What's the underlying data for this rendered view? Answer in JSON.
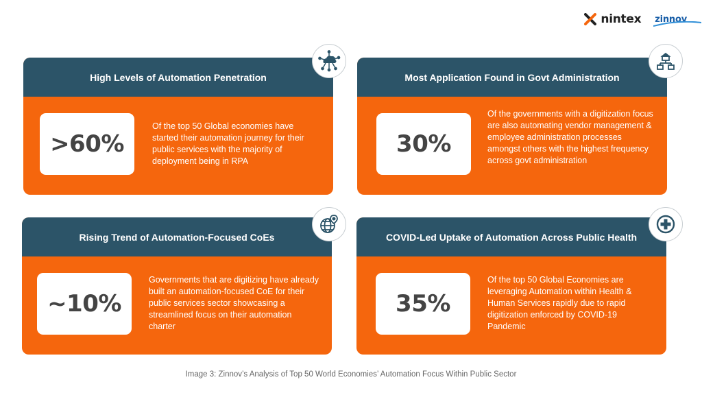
{
  "brand": {
    "primary_logo": "nintex",
    "secondary_logo": "zinnov",
    "accent_orange": "#f5660d",
    "header_teal": "#2c5468"
  },
  "cards": [
    {
      "title": "High Levels of Automation Penetration",
      "stat": ">60%",
      "description": "Of the top 50 Global economies have started their automation journey for their public services with the majority of deployment being in RPA",
      "icon": "cloud-network-icon"
    },
    {
      "title": "Most Application Found in Govt Administration",
      "stat": "30%",
      "description": "Of the governments with a digitization focus are also automating vendor management & employee administration processes amongst others with the highest frequency across govt administration",
      "icon": "government-building-icon"
    },
    {
      "title": "Rising Trend of Automation-Focused CoEs",
      "stat": "~10%",
      "description": "Governments that are digitizing have already built an automation-focused CoE for their public services sector showcasing a streamlined focus on their automation charter",
      "icon": "globe-location-icon"
    },
    {
      "title": "COVID-Led Uptake of Automation Across Public Health",
      "stat": "35%",
      "description": "Of the top 50 Global Economies are leveraging Automation within Health & Human Services rapidly due to rapid digitization enforced by COVID-19 Pandemic",
      "icon": "medical-cross-icon"
    }
  ],
  "caption": "Image 3: Zinnov’s Analysis of Top 50 World Economies’ Automation Focus Within Public Sector"
}
